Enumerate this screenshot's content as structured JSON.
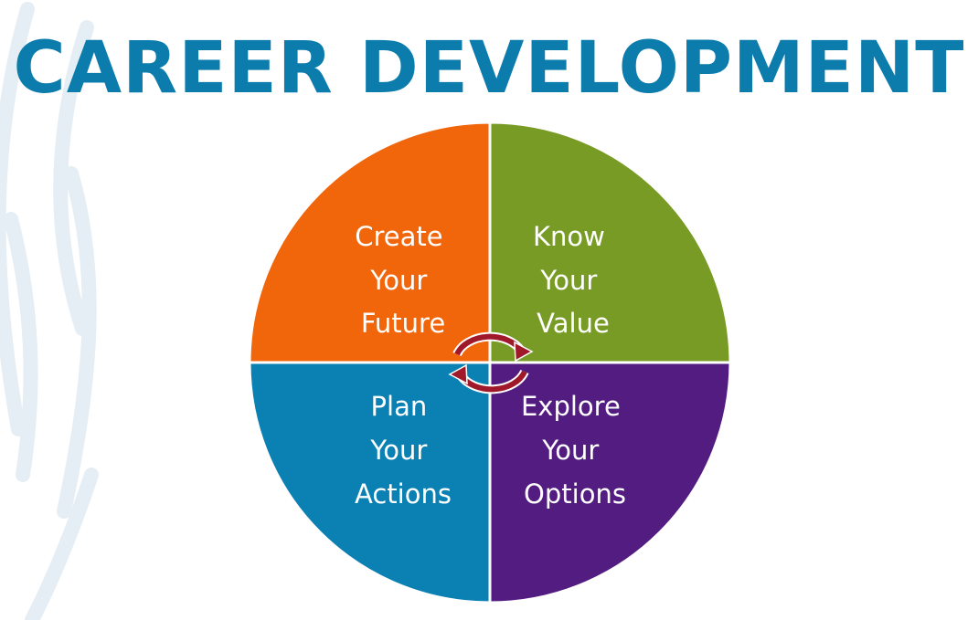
{
  "title": "CAREER DEVELOPMENT",
  "colors": {
    "title": "#0b7cac",
    "create": "#f1650b",
    "know": "#789b25",
    "plan": "#0b80b3",
    "explore": "#531c81",
    "cycle_arrows": "#a0192a",
    "background_arcs": "#e4eef4"
  },
  "quadrants": {
    "create": [
      "Create",
      "Your",
      "Future"
    ],
    "know": [
      "Know",
      "Your",
      "Value"
    ],
    "plan": [
      "Plan",
      "Your",
      "Actions"
    ],
    "explore": [
      "Explore",
      "Your",
      "Options"
    ]
  },
  "center_icon": "cycle-arrows-icon"
}
